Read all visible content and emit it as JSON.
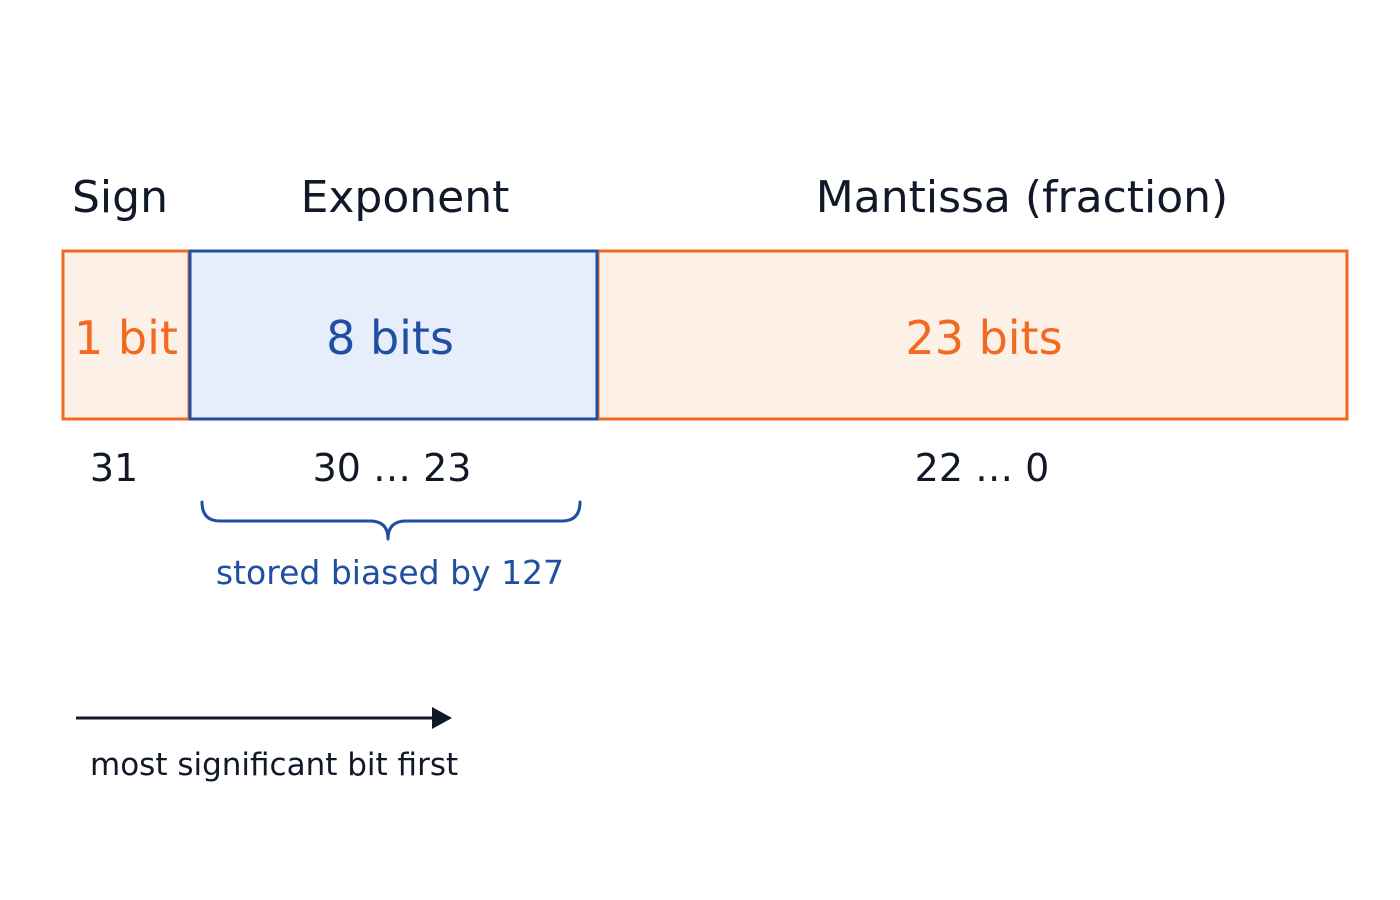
{
  "fields": {
    "sign": {
      "title": "Sign",
      "bits": "1 bit",
      "range": "31"
    },
    "exponent": {
      "title": "Exponent",
      "bits": "8 bits",
      "range": "30 … 23",
      "note": "stored biased by 127"
    },
    "mantissa": {
      "title": "Mantissa (fraction)",
      "bits": "23 bits",
      "range": "22 … 0"
    }
  },
  "direction": {
    "label": "most significant bit first"
  },
  "colors": {
    "orange": "#f26a21",
    "orange_fill": "#fdf0e6",
    "blue": "#1f4ea3",
    "blue_fill": "#e7eefb",
    "text": "#111827"
  }
}
